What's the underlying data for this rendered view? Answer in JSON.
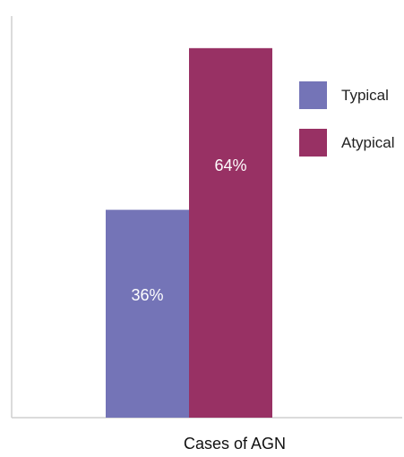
{
  "chart_data": {
    "type": "bar",
    "categories": [
      "Cases of AGN"
    ],
    "series": [
      {
        "name": "Typical",
        "values": [
          36
        ],
        "label": "36%"
      },
      {
        "name": "Atypical",
        "values": [
          64
        ],
        "label": "64%"
      }
    ],
    "xlabel": "Cases of AGN",
    "ylabel": "",
    "ylim": [
      0,
      68
    ],
    "grid": false,
    "legend_position": "top-right",
    "colors": {
      "Typical": "#7474b7",
      "Atypical": "#983164",
      "axis": "#cfcfcf"
    }
  }
}
